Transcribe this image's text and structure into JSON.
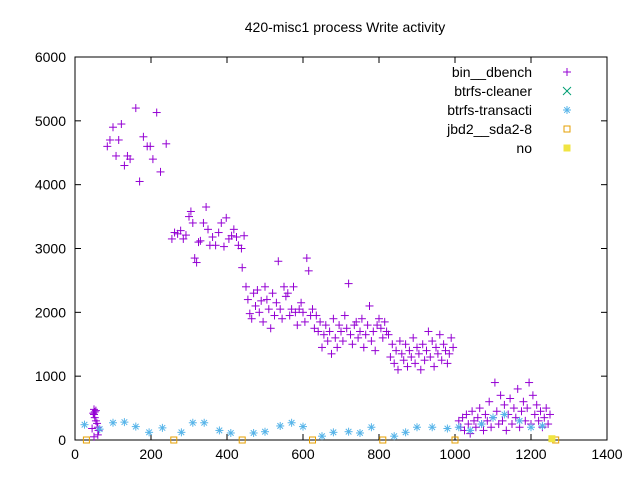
{
  "chart_data": {
    "type": "scatter",
    "title": "420-misc1 process Write activity",
    "xlabel": "",
    "ylabel": "",
    "xlim": [
      0,
      1400
    ],
    "ylim": [
      0,
      6000
    ],
    "xticks": [
      0,
      200,
      400,
      600,
      800,
      1000,
      1200,
      1400
    ],
    "yticks": [
      0,
      1000,
      2000,
      3000,
      4000,
      5000,
      6000
    ],
    "grid": false,
    "legend_position": "top-right",
    "series": [
      {
        "name": "bin__dbench",
        "marker": "plus",
        "color": "#9400d3",
        "points": [
          [
            50,
            400
          ],
          [
            52,
            350
          ],
          [
            55,
            300
          ],
          [
            58,
            260
          ],
          [
            60,
            200
          ],
          [
            62,
            150
          ],
          [
            50,
            480
          ],
          [
            48,
            420
          ],
          [
            52,
            440
          ],
          [
            55,
            460
          ],
          [
            45,
            180
          ],
          [
            60,
            80
          ],
          [
            50,
            50
          ],
          [
            85,
            4600
          ],
          [
            92,
            4700
          ],
          [
            100,
            4900
          ],
          [
            108,
            4450
          ],
          [
            115,
            4700
          ],
          [
            122,
            4950
          ],
          [
            130,
            4300
          ],
          [
            138,
            4450
          ],
          [
            145,
            4400
          ],
          [
            160,
            5200
          ],
          [
            170,
            4050
          ],
          [
            180,
            4750
          ],
          [
            190,
            4600
          ],
          [
            198,
            4600
          ],
          [
            205,
            4400
          ],
          [
            215,
            5130
          ],
          [
            225,
            4200
          ],
          [
            240,
            4640
          ],
          [
            255,
            3150
          ],
          [
            262,
            3250
          ],
          [
            270,
            3230
          ],
          [
            278,
            3280
          ],
          [
            285,
            3150
          ],
          [
            292,
            3210
          ],
          [
            300,
            3500
          ],
          [
            305,
            3580
          ],
          [
            310,
            3400
          ],
          [
            315,
            2850
          ],
          [
            320,
            2780
          ],
          [
            325,
            3100
          ],
          [
            330,
            3120
          ],
          [
            338,
            3400
          ],
          [
            345,
            3650
          ],
          [
            350,
            3300
          ],
          [
            355,
            3050
          ],
          [
            362,
            3180
          ],
          [
            370,
            3050
          ],
          [
            378,
            3250
          ],
          [
            385,
            3400
          ],
          [
            392,
            3030
          ],
          [
            398,
            3480
          ],
          [
            405,
            3150
          ],
          [
            412,
            3200
          ],
          [
            418,
            3300
          ],
          [
            425,
            3180
          ],
          [
            430,
            3050
          ],
          [
            438,
            3000
          ],
          [
            445,
            3200
          ],
          [
            440,
            2700
          ],
          [
            450,
            2400
          ],
          [
            455,
            2200
          ],
          [
            460,
            1980
          ],
          [
            465,
            1900
          ],
          [
            470,
            2300
          ],
          [
            475,
            2100
          ],
          [
            480,
            2350
          ],
          [
            485,
            2000
          ],
          [
            490,
            2180
          ],
          [
            495,
            1850
          ],
          [
            500,
            2400
          ],
          [
            505,
            2200
          ],
          [
            510,
            2050
          ],
          [
            515,
            1750
          ],
          [
            520,
            2300
          ],
          [
            525,
            1950
          ],
          [
            530,
            2150
          ],
          [
            535,
            2800
          ],
          [
            540,
            2050
          ],
          [
            545,
            1900
          ],
          [
            550,
            2400
          ],
          [
            555,
            2250
          ],
          [
            560,
            2300
          ],
          [
            565,
            1950
          ],
          [
            570,
            2050
          ],
          [
            575,
            2400
          ],
          [
            580,
            2000
          ],
          [
            585,
            1800
          ],
          [
            590,
            2050
          ],
          [
            595,
            2150
          ],
          [
            600,
            2000
          ],
          [
            605,
            1850
          ],
          [
            610,
            2850
          ],
          [
            615,
            2650
          ],
          [
            620,
            1950
          ],
          [
            625,
            2050
          ],
          [
            630,
            1750
          ],
          [
            635,
            1950
          ],
          [
            640,
            1700
          ],
          [
            645,
            1850
          ],
          [
            650,
            1450
          ],
          [
            655,
            1650
          ],
          [
            660,
            1800
          ],
          [
            665,
            1550
          ],
          [
            670,
            1700
          ],
          [
            675,
            1350
          ],
          [
            680,
            1900
          ],
          [
            685,
            1600
          ],
          [
            690,
            1450
          ],
          [
            695,
            1800
          ],
          [
            700,
            1700
          ],
          [
            705,
            1550
          ],
          [
            710,
            1950
          ],
          [
            715,
            1750
          ],
          [
            720,
            2450
          ],
          [
            725,
            1650
          ],
          [
            730,
            1500
          ],
          [
            735,
            1800
          ],
          [
            740,
            1850
          ],
          [
            745,
            1600
          ],
          [
            750,
            1700
          ],
          [
            755,
            1900
          ],
          [
            760,
            1450
          ],
          [
            765,
            1650
          ],
          [
            770,
            1800
          ],
          [
            775,
            2100
          ],
          [
            780,
            1550
          ],
          [
            785,
            1700
          ],
          [
            790,
            1400
          ],
          [
            795,
            1800
          ],
          [
            800,
            1900
          ],
          [
            805,
            1750
          ],
          [
            810,
            1600
          ],
          [
            815,
            1850
          ],
          [
            820,
            1700
          ],
          [
            825,
            1650
          ],
          [
            830,
            1300
          ],
          [
            835,
            1500
          ],
          [
            840,
            1200
          ],
          [
            845,
            1400
          ],
          [
            850,
            1100
          ],
          [
            855,
            1550
          ],
          [
            860,
            1350
          ],
          [
            865,
            1250
          ],
          [
            870,
            1500
          ],
          [
            875,
            1150
          ],
          [
            880,
            1400
          ],
          [
            885,
            1300
          ],
          [
            890,
            1600
          ],
          [
            895,
            1200
          ],
          [
            900,
            1450
          ],
          [
            905,
            1350
          ],
          [
            910,
            1100
          ],
          [
            915,
            1500
          ],
          [
            920,
            1250
          ],
          [
            925,
            1400
          ],
          [
            930,
            1700
          ],
          [
            935,
            1300
          ],
          [
            940,
            1550
          ],
          [
            945,
            1150
          ],
          [
            950,
            1450
          ],
          [
            955,
            1350
          ],
          [
            960,
            1650
          ],
          [
            965,
            1250
          ],
          [
            970,
            1500
          ],
          [
            975,
            1400
          ],
          [
            980,
            1200
          ],
          [
            985,
            1350
          ],
          [
            990,
            1600
          ],
          [
            995,
            1450
          ],
          [
            1010,
            300
          ],
          [
            1015,
            200
          ],
          [
            1020,
            350
          ],
          [
            1025,
            150
          ],
          [
            1030,
            400
          ],
          [
            1035,
            250
          ],
          [
            1040,
            100
          ],
          [
            1045,
            450
          ],
          [
            1050,
            300
          ],
          [
            1055,
            200
          ],
          [
            1060,
            350
          ],
          [
            1065,
            500
          ],
          [
            1070,
            250
          ],
          [
            1075,
            150
          ],
          [
            1080,
            400
          ],
          [
            1085,
            300
          ],
          [
            1090,
            600
          ],
          [
            1095,
            200
          ],
          [
            1100,
            350
          ],
          [
            1105,
            900
          ],
          [
            1110,
            450
          ],
          [
            1115,
            250
          ],
          [
            1120,
            700
          ],
          [
            1125,
            300
          ],
          [
            1130,
            550
          ],
          [
            1135,
            150
          ],
          [
            1140,
            400
          ],
          [
            1145,
            650
          ],
          [
            1150,
            250
          ],
          [
            1155,
            500
          ],
          [
            1160,
            350
          ],
          [
            1165,
            800
          ],
          [
            1170,
            200
          ],
          [
            1175,
            450
          ],
          [
            1180,
            600
          ],
          [
            1185,
            300
          ],
          [
            1190,
            500
          ],
          [
            1195,
            900
          ],
          [
            1200,
            250
          ],
          [
            1205,
            700
          ],
          [
            1210,
            400
          ],
          [
            1215,
            550
          ],
          [
            1220,
            300
          ],
          [
            1225,
            450
          ],
          [
            1230,
            200
          ],
          [
            1235,
            350
          ],
          [
            1240,
            500
          ],
          [
            1245,
            250
          ],
          [
            1250,
            400
          ]
        ]
      },
      {
        "name": "btrfs-cleaner",
        "marker": "cross",
        "color": "#009e73",
        "points": []
      },
      {
        "name": "btrfs-transacti",
        "marker": "star",
        "color": "#56b4e9",
        "points": [
          [
            25,
            240
          ],
          [
            65,
            170
          ],
          [
            100,
            270
          ],
          [
            130,
            280
          ],
          [
            160,
            210
          ],
          [
            195,
            120
          ],
          [
            230,
            190
          ],
          [
            280,
            120
          ],
          [
            310,
            270
          ],
          [
            340,
            270
          ],
          [
            380,
            150
          ],
          [
            410,
            110
          ],
          [
            470,
            110
          ],
          [
            500,
            130
          ],
          [
            540,
            220
          ],
          [
            570,
            270
          ],
          [
            600,
            210
          ],
          [
            650,
            60
          ],
          [
            680,
            120
          ],
          [
            720,
            130
          ],
          [
            750,
            110
          ],
          [
            780,
            200
          ],
          [
            840,
            60
          ],
          [
            870,
            120
          ],
          [
            900,
            200
          ],
          [
            940,
            200
          ],
          [
            980,
            180
          ],
          [
            1010,
            200
          ],
          [
            1040,
            150
          ],
          [
            1070,
            250
          ],
          [
            1100,
            350
          ],
          [
            1130,
            400
          ],
          [
            1170,
            300
          ],
          [
            1200,
            200
          ],
          [
            1230,
            220
          ]
        ]
      },
      {
        "name": "jbd2__sda2-8",
        "marker": "open-square",
        "color": "#e69f00",
        "points": [
          [
            30,
            0
          ],
          [
            260,
            0
          ],
          [
            440,
            0
          ],
          [
            625,
            0
          ],
          [
            810,
            0
          ],
          [
            1000,
            0
          ],
          [
            1265,
            0
          ]
        ]
      },
      {
        "name": "no",
        "marker": "filled-square",
        "color": "#f0e442",
        "points": [
          [
            1255,
            20
          ]
        ]
      }
    ]
  }
}
